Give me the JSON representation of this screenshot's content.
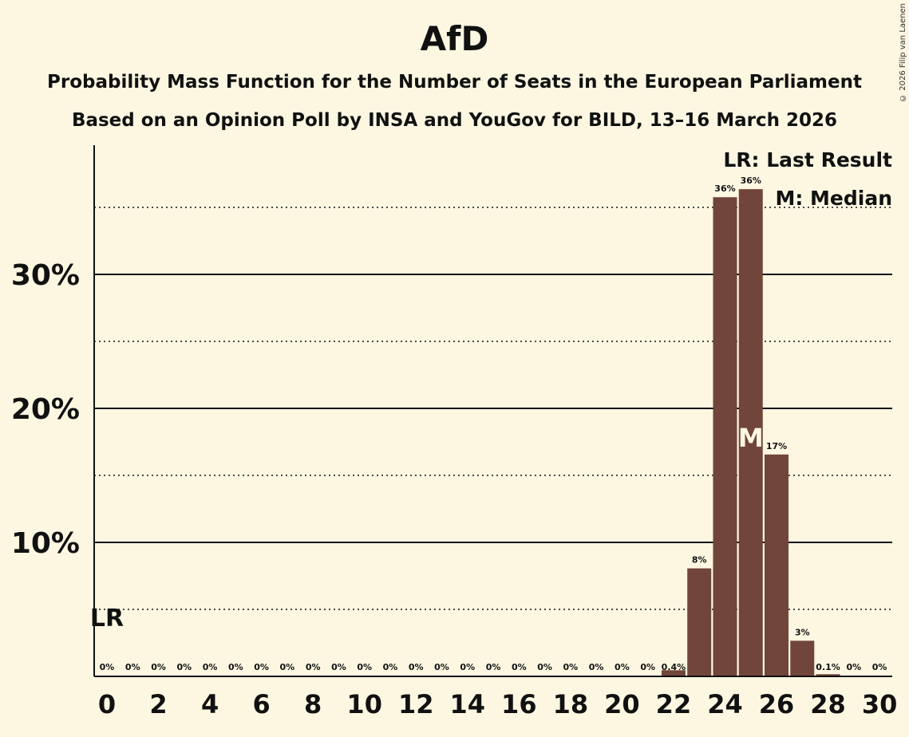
{
  "title": "AfD",
  "subtitle1": "Probability Mass Function for the Number of Seats in the European Parliament",
  "subtitle2": "Based on an Opinion Poll by INSA and YouGov for BILD, 13–16 March 2026",
  "copyright": "© 2026 Filip van Laenen",
  "colors": {
    "bar": "#714539",
    "background": "#fdf7e2",
    "median_text": "#fdf7e2"
  },
  "chart_data": {
    "type": "bar",
    "title": "AfD",
    "xlabel": "",
    "ylabel": "",
    "x": [
      0,
      1,
      2,
      3,
      4,
      5,
      6,
      7,
      8,
      9,
      10,
      11,
      12,
      13,
      14,
      15,
      16,
      17,
      18,
      19,
      20,
      21,
      22,
      23,
      24,
      25,
      26,
      27,
      28,
      29,
      30
    ],
    "values": [
      0,
      0,
      0,
      0,
      0,
      0,
      0,
      0,
      0,
      0,
      0,
      0,
      0,
      0,
      0,
      0,
      0,
      0,
      0,
      0,
      0,
      0,
      0.4,
      8.0,
      35.7,
      36.3,
      16.5,
      2.6,
      0.1,
      0,
      0
    ],
    "data_labels": [
      "0%",
      "0%",
      "0%",
      "0%",
      "0%",
      "0%",
      "0%",
      "0%",
      "0%",
      "0%",
      "0%",
      "0%",
      "0%",
      "0%",
      "0%",
      "0%",
      "0%",
      "0%",
      "0%",
      "0%",
      "0%",
      "0%",
      "0.4%",
      "8%",
      "36%",
      "36%",
      "17%",
      "3%",
      "0.1%",
      "0%",
      "0%"
    ],
    "xticks": [
      "0",
      "2",
      "4",
      "6",
      "8",
      "10",
      "12",
      "14",
      "16",
      "18",
      "20",
      "22",
      "24",
      "26",
      "28",
      "30"
    ],
    "yticks": [
      {
        "v": 10,
        "label": "10%"
      },
      {
        "v": 20,
        "label": "20%"
      },
      {
        "v": 30,
        "label": "30%"
      }
    ],
    "minor_grid": [
      5,
      15,
      25,
      35
    ],
    "ylim": [
      0,
      39.7
    ],
    "xlim": [
      -0.5,
      30.5
    ],
    "last_result": {
      "seat": 0,
      "label": "LR"
    },
    "median": {
      "seat": 25,
      "label": "M"
    },
    "legend": [
      "LR: Last Result",
      "M: Median"
    ],
    "legend_position": "top-right"
  }
}
